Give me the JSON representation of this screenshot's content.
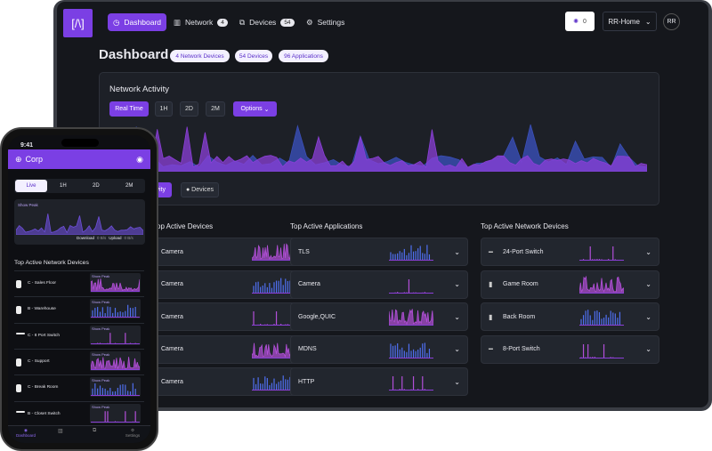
{
  "nav": {
    "items": [
      {
        "label": "Dashboard"
      },
      {
        "label": "Network",
        "badge": "4"
      },
      {
        "label": "Devices",
        "badge": "54"
      },
      {
        "label": "Settings"
      }
    ],
    "alerts": "0",
    "site": "RR-Home",
    "avatar": "RR"
  },
  "header": {
    "title": "Dashboard",
    "chips": [
      "4 Network Devices",
      "54 Devices",
      "96 Applications"
    ]
  },
  "activity": {
    "title": "Network Activity",
    "ranges": [
      "Real Time",
      "1H",
      "2D",
      "2M"
    ],
    "options": "Options",
    "tabs": [
      "Activity",
      "Devices"
    ]
  },
  "columns": [
    {
      "title": "Top Active Devices",
      "rows": [
        "Camera",
        "Camera",
        "Camera",
        "Camera",
        "Camera"
      ]
    },
    {
      "title": "Top Active Applications",
      "rows": [
        "TLS",
        "Camera",
        "Google,QUIC",
        "MDNS",
        "HTTP"
      ]
    },
    {
      "title": "Top Active Network Devices",
      "rows": [
        "24-Port Switch",
        "Game Room",
        "Back Room",
        "8-Port Switch"
      ]
    }
  ],
  "phone": {
    "time": "9:41",
    "title": "Corp",
    "ranges": [
      "Live",
      "1H",
      "2D",
      "2M"
    ],
    "show_peak": "Show Peak",
    "download": "Download",
    "download_rate": "0 B/s",
    "upload": "Upload",
    "upload_rate": "0 B/s",
    "section": "Top Active Network Devices",
    "devices": [
      "C - Sales Floor",
      "B - Warehouse",
      "C - 8 Port Switch",
      "C - Support",
      "C - Break Room",
      "B - Closet Switch"
    ],
    "tabs": [
      "Dashboard",
      "Settings"
    ]
  }
}
